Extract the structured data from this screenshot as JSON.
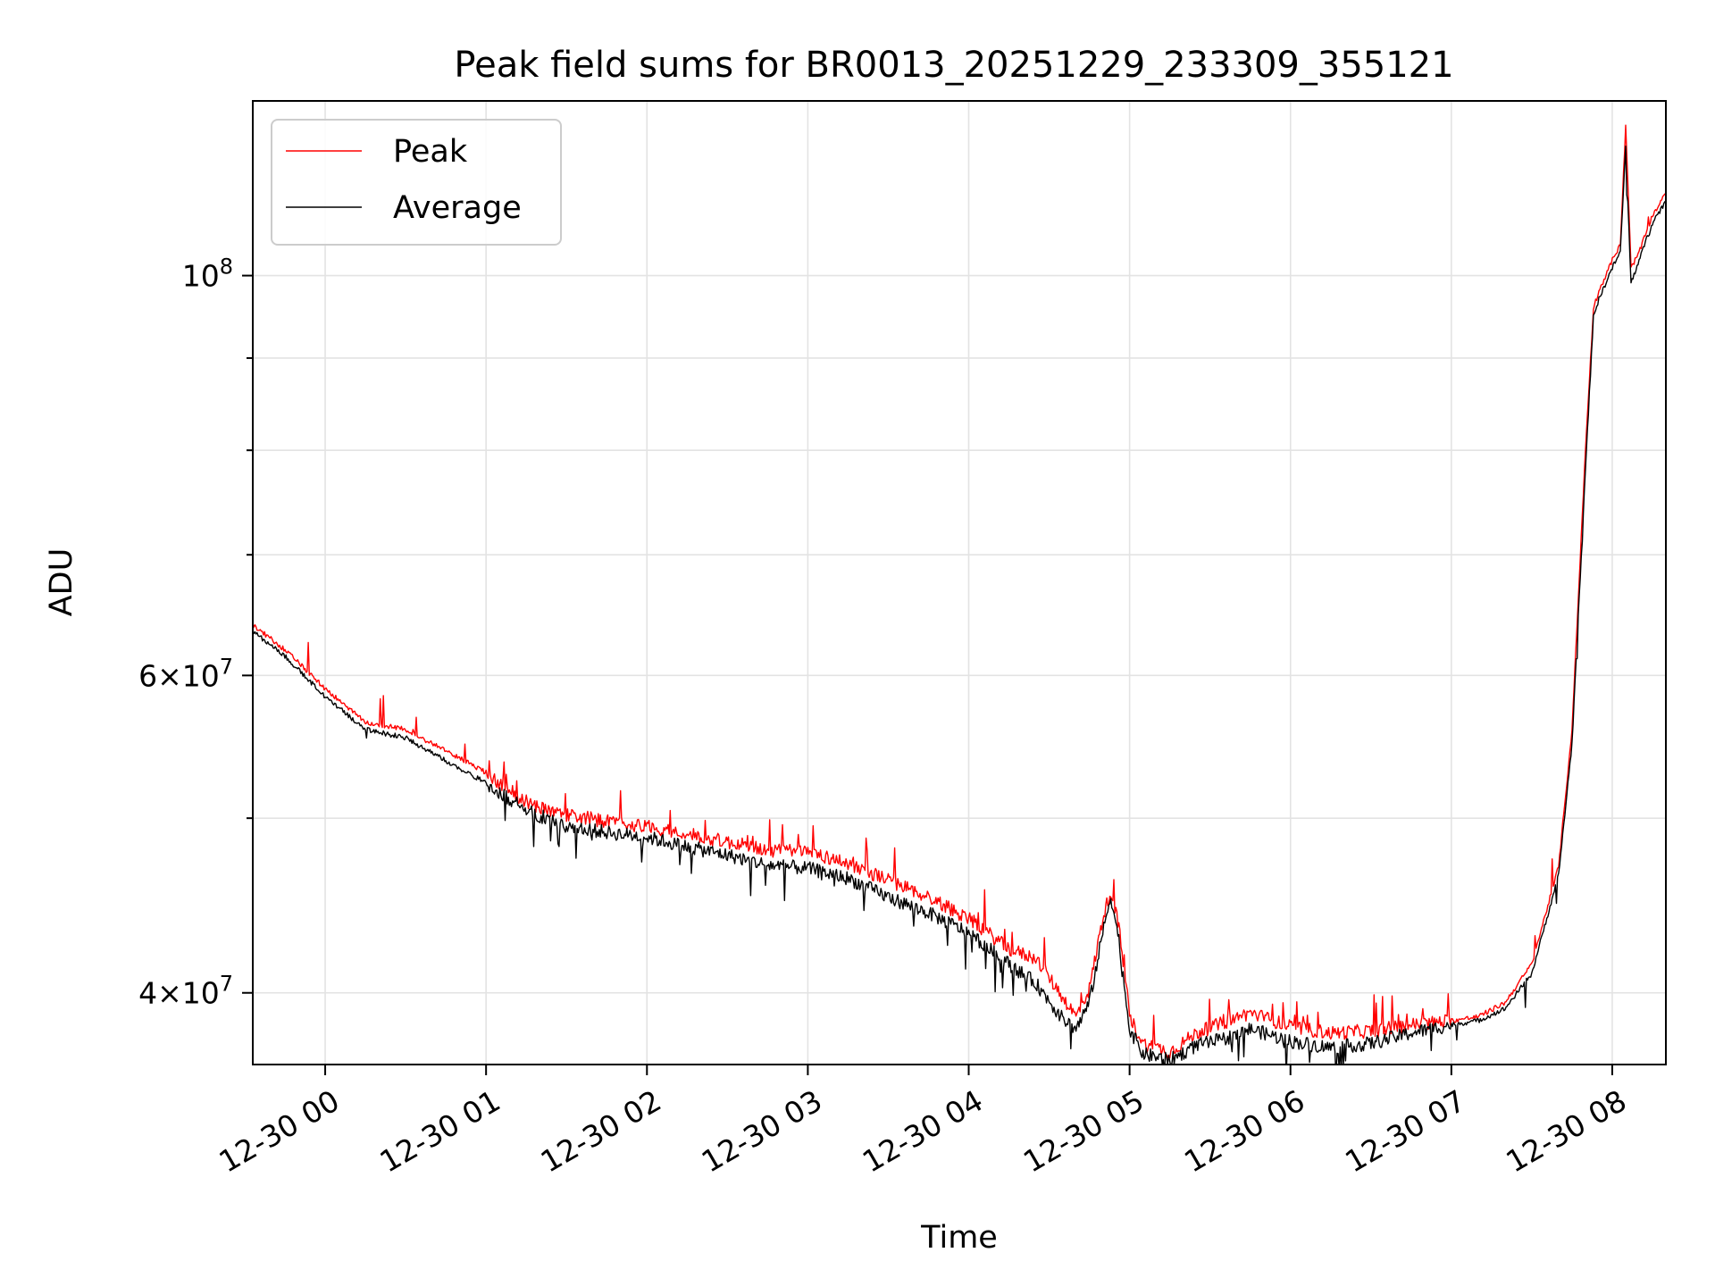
{
  "chart_data": {
    "type": "line",
    "title": "Peak field sums for BR0013_20251229_233309_355121",
    "xlabel": "Time",
    "ylabel": "ADU",
    "yscale": "log",
    "grid": true,
    "legend_position": "top-left",
    "xlim": [
      "12-29 23:33",
      "12-30 08:20"
    ],
    "ylim": [
      36500000,
      125000000
    ],
    "x_ticks": [
      "12-30 00",
      "12-30 01",
      "12-30 02",
      "12-30 03",
      "12-30 04",
      "12-30 05",
      "12-30 06",
      "12-30 07",
      "12-30 08"
    ],
    "y_ticks": [
      {
        "value": 100000000,
        "base": "10",
        "exp": "8",
        "mult": ""
      },
      {
        "value": 60000000,
        "base": "10",
        "exp": "7",
        "mult": "6"
      },
      {
        "value": 40000000,
        "base": "10",
        "exp": "7",
        "mult": "4"
      }
    ],
    "y_minor_ticks": [
      50000000,
      70000000,
      80000000,
      90000000
    ],
    "x": [
      "12-29 23:33",
      "12-29 23:45",
      "12-30 00:00",
      "12-30 00:15",
      "12-30 00:30",
      "12-30 00:45",
      "12-30 01:00",
      "12-30 01:15",
      "12-30 01:30",
      "12-30 01:45",
      "12-30 02:00",
      "12-30 02:15",
      "12-30 02:30",
      "12-30 02:45",
      "12-30 03:00",
      "12-30 03:15",
      "12-30 03:30",
      "12-30 03:45",
      "12-30 04:00",
      "12-30 04:15",
      "12-30 04:25",
      "12-30 04:35",
      "12-30 04:40",
      "12-30 04:45",
      "12-30 04:50",
      "12-30 04:53",
      "12-30 04:56",
      "12-30 05:00",
      "12-30 05:05",
      "12-30 05:15",
      "12-30 05:25",
      "12-30 05:35",
      "12-30 05:45",
      "12-30 06:00",
      "12-30 06:15",
      "12-30 06:30",
      "12-30 06:45",
      "12-30 07:00",
      "12-30 07:10",
      "12-30 07:20",
      "12-30 07:30",
      "12-30 07:40",
      "12-30 07:45",
      "12-30 07:50",
      "12-30 07:53",
      "12-30 07:55",
      "12-30 08:00",
      "12-30 08:03",
      "12-30 08:05",
      "12-30 08:07",
      "12-30 08:10",
      "12-30 08:15",
      "12-30 08:20"
    ],
    "series": [
      {
        "name": "Peak",
        "color": "#ff0000",
        "values": [
          64000000,
          62000000,
          59000000,
          56500000,
          56000000,
          54500000,
          53000000,
          51000000,
          50200000,
          49800000,
          49500000,
          49000000,
          48500000,
          48000000,
          47900000,
          47200000,
          46200000,
          45200000,
          44000000,
          42300000,
          41800000,
          39800000,
          38800000,
          40200000,
          44000000,
          45600000,
          43500000,
          38800000,
          37500000,
          37100000,
          38000000,
          38500000,
          39000000,
          38300000,
          38000000,
          38100000,
          38400000,
          38600000,
          38800000,
          39500000,
          41500000,
          47000000,
          56000000,
          80000000,
          96000000,
          98000000,
          102000000,
          104000000,
          121000000,
          101000000,
          103000000,
          108000000,
          111000000
        ]
      },
      {
        "name": "Average",
        "color": "#000000",
        "values": [
          63500000,
          61500000,
          58400000,
          56000000,
          55400000,
          53800000,
          52300000,
          50500000,
          49500000,
          49100000,
          48800000,
          48200000,
          47700000,
          47100000,
          46900000,
          46300000,
          45200000,
          44300000,
          43200000,
          41500000,
          40500000,
          38700000,
          38200000,
          39500000,
          43200000,
          45300000,
          42800000,
          38200000,
          37000000,
          36700000,
          37400000,
          37700000,
          38200000,
          37600000,
          37300000,
          37500000,
          38000000,
          38400000,
          38600000,
          39200000,
          41000000,
          46500000,
          55000000,
          78000000,
          95000000,
          97000000,
          101000000,
          103000000,
          118000000,
          99000000,
          102000000,
          107000000,
          110000000
        ]
      }
    ]
  }
}
